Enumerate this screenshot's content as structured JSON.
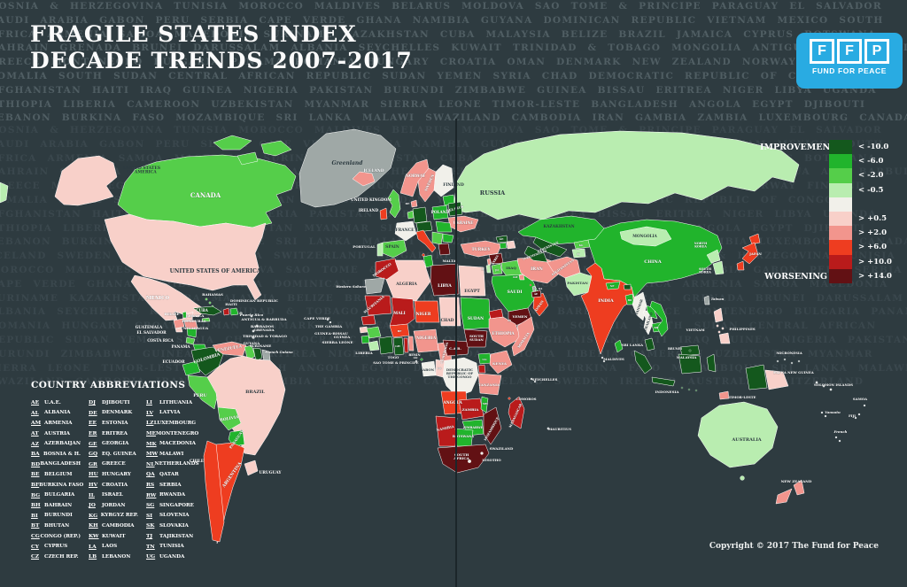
{
  "header": {
    "title1": "FRAGILE STATES INDEX",
    "title2": "DECADE TRENDS 2007-2017"
  },
  "logo": {
    "letters": [
      "F",
      "F",
      "P"
    ],
    "caption": "FUND FOR PEACE"
  },
  "copyright": "Copyright © 2017 The Fund for Peace",
  "legend": {
    "improvement_label": "IMPROVEMENT",
    "worsening_label": "WORSENING",
    "colors": {
      "g4": "#14581d",
      "g3": "#21b42c",
      "g2": "#55ce4a",
      "g1": "#b9edb0",
      "n0": "#f1f0ea",
      "r1": "#f8d0c9",
      "r2": "#f2958d",
      "r3": "#ee3d20",
      "r4": "#b91b1b",
      "r5": "#621114",
      "na": "#9fa8a6"
    },
    "entries": [
      {
        "label": "< -10.0",
        "cat": "g4"
      },
      {
        "label": "< -6.0",
        "cat": "g3"
      },
      {
        "label": "< -2.0",
        "cat": "g2"
      },
      {
        "label": "< -0.5",
        "cat": "g1"
      },
      {
        "label": "",
        "cat": "n0"
      },
      {
        "label": "> +0.5",
        "cat": "r1"
      },
      {
        "label": "> +2.0",
        "cat": "r2"
      },
      {
        "label": "> +6.0",
        "cat": "r3"
      },
      {
        "label": "> +10.0",
        "cat": "r4"
      },
      {
        "label": "> +14.0",
        "cat": "r5"
      }
    ]
  },
  "abbreviations": {
    "title": "COUNTRY ABBREVIATIONS",
    "columns": [
      [
        [
          "AE",
          "U.A.E."
        ],
        [
          "AL",
          "ALBANIA"
        ],
        [
          "AM",
          "ARMENIA"
        ],
        [
          "AT",
          "AUSTRIA"
        ],
        [
          "AZ",
          "AZERBAIJAN"
        ],
        [
          "BA",
          "BOSNIA & H."
        ],
        [
          "BD",
          "BANGLADESH"
        ],
        [
          "BE",
          "BELGIUM"
        ],
        [
          "BF",
          "BURKINA FASO"
        ],
        [
          "BG",
          "BULGARIA"
        ],
        [
          "BH",
          "BAHRAIN"
        ],
        [
          "BI",
          "BURUNDI"
        ],
        [
          "BT",
          "BHUTAN"
        ],
        [
          "CG",
          "CONGO (REP.)"
        ],
        [
          "CY",
          "CYPRUS"
        ],
        [
          "CZ",
          "CZECH REP."
        ]
      ],
      [
        [
          "DJ",
          "DJIBOUTI"
        ],
        [
          "DE",
          "DENMARK"
        ],
        [
          "EE",
          "ESTONIA"
        ],
        [
          "ER",
          "ERITREA"
        ],
        [
          "GE",
          "GEORGIA"
        ],
        [
          "GQ",
          "EQ. GUINEA"
        ],
        [
          "GR",
          "GREECE"
        ],
        [
          "HU",
          "HUNGARY"
        ],
        [
          "HV",
          "CROATIA"
        ],
        [
          "IL",
          "ISRAEL"
        ],
        [
          "JO",
          "JORDAN"
        ],
        [
          "KG",
          "KYRGYZ REP."
        ],
        [
          "KH",
          "CAMBODIA"
        ],
        [
          "KW",
          "KUWAIT"
        ],
        [
          "LA",
          "LAOS"
        ],
        [
          "LB",
          "LEBANON"
        ]
      ],
      [
        [
          "LI",
          "LITHUANIA"
        ],
        [
          "LV",
          "LATVIA"
        ],
        [
          "LZ",
          "LUXEMBOURG"
        ],
        [
          "ME",
          "MONTENEGRO"
        ],
        [
          "MK",
          "MACEDONIA"
        ],
        [
          "MW",
          "MALAWI"
        ],
        [
          "NL",
          "NETHERLANDS"
        ],
        [
          "QA",
          "QATAR"
        ],
        [
          "RS",
          "SERBIA"
        ],
        [
          "RW",
          "RWANDA"
        ],
        [
          "SG",
          "SINGAPORE"
        ],
        [
          "SI",
          "SLOVENIA"
        ],
        [
          "SK",
          "SLOVAKIA"
        ],
        [
          "TJ",
          "TAJIKISTAN"
        ],
        [
          "TN",
          "TUNISIA"
        ],
        [
          "UG",
          "UGANDA"
        ]
      ]
    ]
  },
  "background": {
    "names": "BOSNIA & HERZEGOVINA TUNISIA MOROCCO MALDIVES BELARUS MOLDOVA SAO TOME & PRINCIPE PARAGUAY EL SALVADOR SAUDI ARABIA GABON PERU SERBIA CAPE VERDE GHANA NAMIBIA GUYANA DOMINICAN REPUBLIC VIETNAM MEXICO SOUTH AFRICA ARMENIA SAMOA MACEDONIA SURINAME KAZAKHSTAN CUBA MALAYSIA BELIZE BRAZIL JAMAICA CYPRUS BOTSWANA BAHRAIN GRENADA BRUNEI DARUSSALAM ALBANIA SEYCHELLES KUWAIT TRINIDAD & TOBAGO MONGOLIA ANTIGUA AND BARBUDA GREECE MONTENEGRO BULGARIA PANAMA ROMANIA HUNGARY CROATIA OMAN DENMARK NEW ZEALAND NORWAY FINLAND SOMALIA SOUTH SUDAN CENTRAL AFRICAN REPUBLIC SUDAN YEMEN SYRIA CHAD DEMOCRATIC REPUBLIC OF CONGO AFGHANISTAN HAITI IRAQ GUINEA NIGERIA PAKISTAN BURUNDI ZIMBABWE GUINEA BISSAU ERITREA NIGER LIBYA UGANDA ETHIOPIA LIBERIA CAMEROON UZBEKISTAN MYANMAR SIERRA LEONE TIMOR-LESTE BANGLADESH ANGOLA EGYPT DJIBOUTI LEBANON BURKINA FASO MOZAMBIQUE SRI LANKA MALAWI SWAZILAND CAMBODIA IRAN GAMBIA ZAMBIA LUXEMBOURG CANADA ICELAND SWEDEN IRELAND AUSTRALIA SWITZERLAND SINGAPORE UNITED STATES SLOVENIA "
  },
  "map": {
    "countries": {
      "russia": {
        "label": "RUSSIA",
        "cat": "g1"
      },
      "greenland": {
        "label": "Greenland",
        "cat": "na"
      },
      "canada": {
        "label": "CANADA",
        "cat": "g2"
      },
      "usa_alaska": {
        "label": "UNITED STATES\nOF AMERICA",
        "cat": "r1"
      },
      "usa": {
        "label": "UNITED STATES OF AMERICA",
        "cat": "r1"
      },
      "mexico": {
        "label": "MEXICO",
        "cat": "r1"
      },
      "bahamas": {
        "label": "BAHAMAS",
        "cat": "g2"
      },
      "cuba": {
        "label": "CUBA",
        "cat": "g4"
      },
      "jamaica": {
        "label": "JAMAICA",
        "cat": "g2"
      },
      "haiti": {
        "label": "HAITI",
        "cat": "r4"
      },
      "dominican_republic": {
        "label": "DOMINICAN REPUBLIC",
        "cat": "g3"
      },
      "puerto_rico": {
        "label": "Puerto Rico",
        "cat": "na"
      },
      "antigua": {
        "label": "ANTIGUA & BARBUDA"
      },
      "barbados": {
        "label": "BARBADOS"
      },
      "grenada": {
        "label": "GRENADA"
      },
      "trinidad": {
        "label": "TRINIDAD & TOBAGO"
      },
      "belize": {
        "label": "BELIZE",
        "cat": "g3"
      },
      "guatemala": {
        "label": "GUATEMALA",
        "cat": "r2"
      },
      "el_salvador": {
        "label": "EL SALVADOR",
        "cat": "r1"
      },
      "honduras": {
        "label": "HONDURAS",
        "cat": "r2"
      },
      "nicaragua": {
        "label": "NICARAGUA",
        "cat": "g3"
      },
      "costa_rica": {
        "label": "COSTA RICA",
        "cat": "g2"
      },
      "panama": {
        "label": "PANAMA",
        "cat": "g3"
      },
      "colombia": {
        "label": "COLOMBIA",
        "cat": "g4"
      },
      "venezuela": {
        "label": "VENEZUELA",
        "cat": "r2"
      },
      "guyana": {
        "label": "GUYANA",
        "cat": "g2"
      },
      "suriname": {
        "label": "SURINAME",
        "cat": "g4"
      },
      "french_guiana": {
        "label": "French Guiana",
        "cat": "na"
      },
      "ecuador": {
        "label": "ECUADOR",
        "cat": "g3"
      },
      "peru": {
        "label": "PERU",
        "cat": "g2"
      },
      "brazil": {
        "label": "BRAZIL",
        "cat": "r1"
      },
      "bolivia": {
        "label": "BOLIVIA",
        "cat": "g2"
      },
      "paraguay": {
        "label": "PARAGUAY",
        "cat": "g3"
      },
      "argentina": {
        "label": "ARGENTINA",
        "cat": "r3"
      },
      "chile": {
        "label": "CHILE",
        "cat": "r3"
      },
      "uruguay": {
        "label": "URUGUAY",
        "cat": "r1"
      },
      "iceland": {
        "label": "ICELAND",
        "cat": "r2"
      },
      "norway": {
        "label": "NORWAY",
        "cat": "r2"
      },
      "sweden": {
        "label": "SWEDEN",
        "cat": "r2"
      },
      "finland": {
        "label": "FINLAND",
        "cat": "n0"
      },
      "denmark": {
        "label": "DE",
        "cat": "r2"
      },
      "uk": {
        "label": "UNITED KINGDOM",
        "cat": "g2"
      },
      "ireland": {
        "label": "IRELAND",
        "cat": "r3"
      },
      "france": {
        "label": "FRANCE",
        "cat": "n0"
      },
      "spain": {
        "label": "SPAIN",
        "cat": "g2"
      },
      "portugal": {
        "label": "PORTUGAL",
        "cat": "g1"
      },
      "germany": {
        "label": "",
        "cat": "g4"
      },
      "benelux": {
        "label": "",
        "cat": "g2"
      },
      "baltics": {
        "label": "",
        "cat": "g3"
      },
      "poland": {
        "label": "POLAND",
        "cat": "g3"
      },
      "belarus": {
        "label": "BELARUS",
        "cat": "g4"
      },
      "ukraine": {
        "label": "UKRAINE",
        "cat": "r2"
      },
      "czech_cluster": {
        "label": "",
        "cat": "g4"
      },
      "hungary_romania": {
        "label": "",
        "cat": "g3"
      },
      "balkans": {
        "label": "",
        "cat": "g2"
      },
      "bulgaria": {
        "label": "",
        "cat": "g3"
      },
      "greece": {
        "label": "",
        "cat": "r5"
      },
      "italy": {
        "label": "",
        "cat": "r3"
      },
      "malta": {
        "label": "MALTA"
      },
      "turkey": {
        "label": "TURKEY",
        "cat": "r2"
      },
      "georgia": {
        "label": "GE",
        "cat": "g4"
      },
      "armenia": {
        "label": "",
        "cat": "g3"
      },
      "azerbaijan": {
        "label": "",
        "cat": "r1"
      },
      "syria": {
        "label": "SYRIA",
        "cat": "r5"
      },
      "lebanon": {
        "label": "",
        "cat": "r2"
      },
      "israel": {
        "label": "IL",
        "cat": "g1"
      },
      "jordan": {
        "label": "JO",
        "cat": "g2"
      },
      "iraq": {
        "label": "IRAQ",
        "cat": "g2"
      },
      "iran": {
        "label": "IRAN",
        "cat": "r2"
      },
      "saudi": {
        "label": "SAUDI",
        "cat": "g3"
      },
      "yemen": {
        "label": "YEMEN",
        "cat": "r5"
      },
      "oman": {
        "label": "OMAN",
        "cat": "r3"
      },
      "uae": {
        "label": "AE",
        "cat": "r5"
      },
      "kuwait": {
        "label": "KW",
        "cat": "r2"
      },
      "qatar": {
        "label": "QA",
        "cat": "na"
      },
      "bahrain": {
        "label": "",
        "cat": "r4"
      },
      "morocco": {
        "label": "MOROCCO",
        "cat": "r4"
      },
      "western_sahara": {
        "label": "Western Sahara",
        "cat": "na"
      },
      "algeria": {
        "label": "ALGERIA",
        "cat": "r1"
      },
      "tunisia": {
        "label": "",
        "cat": "g3"
      },
      "libya": {
        "label": "LIBYA",
        "cat": "r5"
      },
      "egypt": {
        "label": "EGYPT",
        "cat": "r1"
      },
      "mauritania": {
        "label": "MAURITANIA",
        "cat": "r4"
      },
      "mali": {
        "label": "MALI",
        "cat": "r4"
      },
      "niger": {
        "label": "NIGER",
        "cat": "r3"
      },
      "chad": {
        "label": "CHAD",
        "cat": "r1"
      },
      "sudan": {
        "label": "SUDAN",
        "cat": "g3"
      },
      "eritrea": {
        "label": "",
        "cat": "r4"
      },
      "djibouti": {
        "label": "DJ",
        "cat": "r1"
      },
      "ethiopia": {
        "label": "ETHIOPIA",
        "cat": "r2"
      },
      "somalia": {
        "label": "SOMALIA",
        "cat": "r2"
      },
      "senegal": {
        "label": "",
        "cat": "r4"
      },
      "cape_verde": {
        "label": "CAPE VERDE"
      },
      "gambia": {
        "label": "THE GAMBIA"
      },
      "guinea_bissau": {
        "label": "GUINEA-BISSAU",
        "cat": "r1"
      },
      "guinea": {
        "label": "GUINEA",
        "cat": "g2"
      },
      "sierra_leone": {
        "label": "SIERRA LEONE",
        "cat": "g3"
      },
      "liberia": {
        "label": "LIBERIA",
        "cat": "g1"
      },
      "cote_divoire": {
        "label": "",
        "cat": "g4"
      },
      "burkina": {
        "label": "BF",
        "cat": "r3"
      },
      "ghana": {
        "label": "GH",
        "cat": "g4"
      },
      "togo": {
        "label": "TOGO",
        "cat": "r4"
      },
      "benin": {
        "label": "BENIN",
        "cat": "r2"
      },
      "sao_tome": {
        "label": "SAO TOME & PRINCIPE"
      },
      "nigeria": {
        "label": "NIGERIA",
        "cat": "r2"
      },
      "cameroon": {
        "label": "CAMEROON",
        "cat": "r2"
      },
      "car": {
        "label": "C.A.R.",
        "cat": "r5"
      },
      "south_sudan": {
        "label": "SOUTH\nSUDAN",
        "cat": "r5"
      },
      "drc": {
        "label": "DEMOCRATIC\nREPUBLIC OF\nTHE CONGO",
        "cat": "n0"
      },
      "gabon": {
        "label": "GABON",
        "cat": "n0"
      },
      "congo_rep": {
        "label": "CG",
        "cat": "r1"
      },
      "eq_guinea": {
        "label": "GQ",
        "cat": "g3"
      },
      "uganda": {
        "label": "UG",
        "cat": "g3"
      },
      "kenya": {
        "label": "KENYA",
        "cat": "r2"
      },
      "rwanda_burundi": {
        "label": "",
        "cat": "r4"
      },
      "tanzania": {
        "label": "TANZANIA",
        "cat": "r2"
      },
      "angola": {
        "label": "ANGOLA",
        "cat": "r3"
      },
      "zambia": {
        "label": "ZAMBIA",
        "cat": "r4"
      },
      "malawi": {
        "label": "MW",
        "cat": "g3"
      },
      "mozambique": {
        "label": "MOZAMBIQUE",
        "cat": "r5"
      },
      "zimbabwe": {
        "label": "ZIMBABWE",
        "cat": "g3"
      },
      "namibia": {
        "label": "NAMIBIA",
        "cat": "r4"
      },
      "botswana": {
        "label": "BOTSWANA",
        "cat": "g3"
      },
      "south_africa": {
        "label": "SOUTH\nAFRICA",
        "cat": "r5"
      },
      "lesotho": {
        "label": "LESOTHO",
        "cat": "n0"
      },
      "swaziland": {
        "label": "SWAZILAND",
        "cat": "n0"
      },
      "madagascar": {
        "label": "MADAGASCAR",
        "cat": "r4"
      },
      "comoros": {
        "label": "COMOROS",
        "cat": "r3"
      },
      "seychelles": {
        "label": "SEYCHELLES"
      },
      "mauritius": {
        "label": "MAURITIUS"
      },
      "kazakhstan": {
        "label": "KAZAKHSTAN",
        "cat": "g3"
      },
      "uzbekistan": {
        "label": "UZBEKISTAN",
        "cat": "g4"
      },
      "turkmenistan": {
        "label": "TURKMENISTAN",
        "cat": "g4"
      },
      "kyrgyzstan": {
        "label": "KG",
        "cat": "g2"
      },
      "tajikistan": {
        "label": "TJ",
        "cat": "g1"
      },
      "afghanistan": {
        "label": "AFGHANISTAN",
        "cat": "r2"
      },
      "pakistan": {
        "label": "PAKISTAN",
        "cat": "g1"
      },
      "china": {
        "label": "CHINA",
        "cat": "g3"
      },
      "mongolia": {
        "label": "MONGOLIA",
        "cat": "g1"
      },
      "india": {
        "label": "INDIA",
        "cat": "r3"
      },
      "nepal": {
        "label": "NP",
        "cat": "g3"
      },
      "bhutan": {
        "label": "",
        "cat": "g4"
      },
      "bangladesh": {
        "label": "BD",
        "cat": "g3"
      },
      "sri_lanka": {
        "label": "SRI LANKA",
        "cat": "g3"
      },
      "maldives": {
        "label": "MALDIVES"
      },
      "myanmar": {
        "label": "MYANMAR",
        "cat": "n0"
      },
      "thailand": {
        "label": "THAILAND",
        "cat": "n0"
      },
      "laos": {
        "label": "",
        "cat": "g3"
      },
      "cambodia": {
        "label": "KH",
        "cat": "g3"
      },
      "vietnam": {
        "label": "VIETNAM",
        "cat": "g3"
      },
      "malaysia": {
        "label": "MALAYSIA",
        "cat": "g4"
      },
      "brunei": {
        "label": "BRUNEI",
        "cat": "g4"
      },
      "indonesia": {
        "label": "INDONESIA",
        "cat": "g4"
      },
      "timor": {
        "label": "TIMOR-LESTE",
        "cat": "r2"
      },
      "philippines": {
        "label": "PHILIPPINES",
        "cat": "r1"
      },
      "taiwan": {
        "label": "Taiwan",
        "cat": "na"
      },
      "north_korea": {
        "label": "NORTH\nKOREA",
        "cat": "g1"
      },
      "south_korea": {
        "label": "SOUTH\nKOREA",
        "cat": "g1"
      },
      "japan": {
        "label": "JAPAN",
        "cat": "r3"
      },
      "micronesia": {
        "label": "MICRONESIA",
        "cat": "na"
      },
      "png": {
        "label": "PAPUA NEW GUINEA",
        "cat": "r1"
      },
      "solomon": {
        "label": "SOLOMON ISLANDS"
      },
      "vanuatu": {
        "label": "Vanuatu"
      },
      "fiji": {
        "label": "FIJI"
      },
      "samoa": {
        "label": "SAMOA"
      },
      "french_nc": {
        "label": "French"
      },
      "australia": {
        "label": "AUSTRALIA",
        "cat": "g1"
      },
      "new_zealand": {
        "label": "NEW ZEALAND",
        "cat": "r2"
      }
    }
  }
}
